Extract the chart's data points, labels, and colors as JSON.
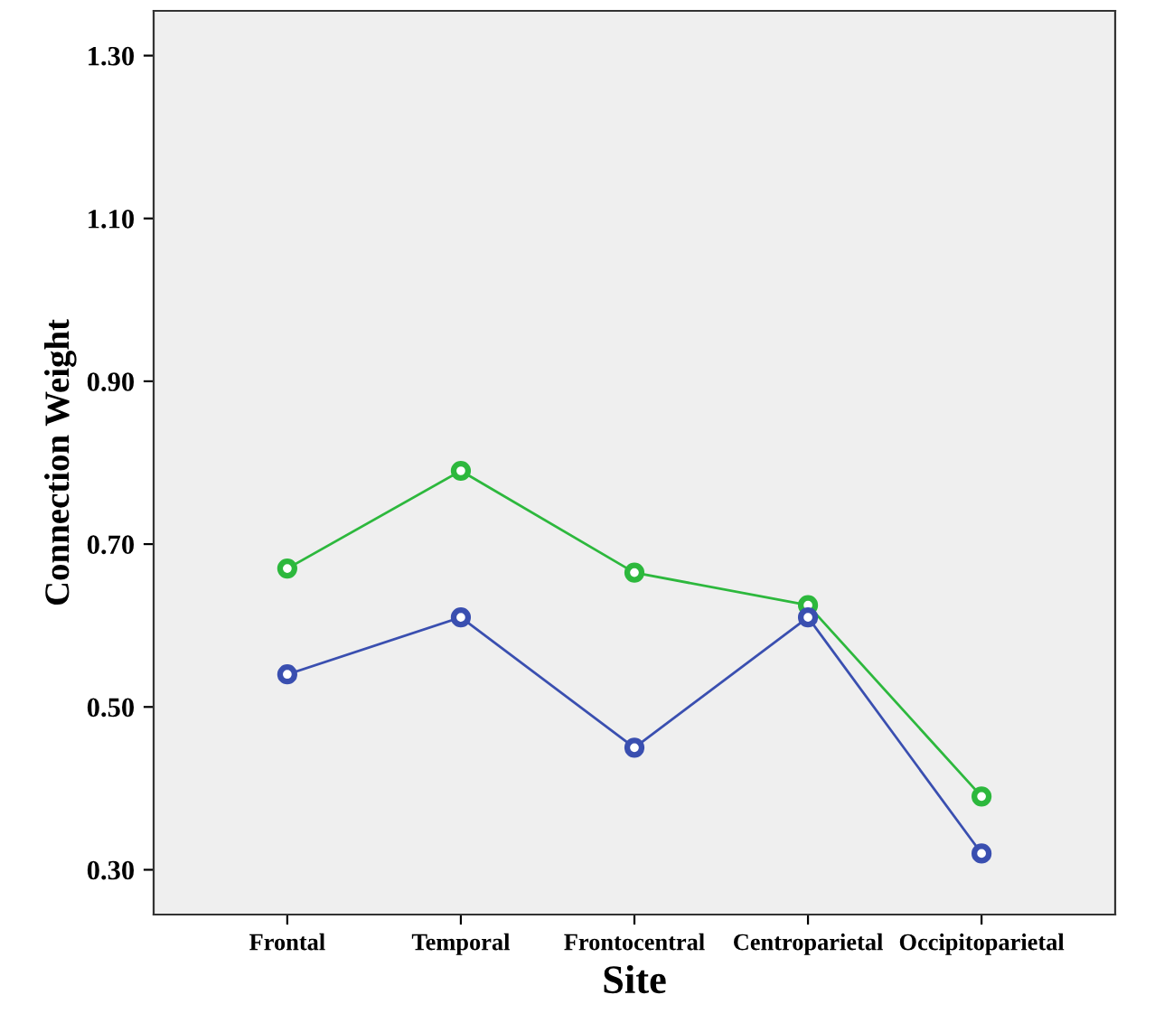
{
  "chart_data": {
    "type": "line",
    "xlabel": "Site",
    "ylabel": "Connection Weight",
    "categories": [
      "Frontal",
      "Temporal",
      "Frontocentral",
      "Centroparietal",
      "Occipitoparietal"
    ],
    "series": [
      {
        "color": "#2db83d",
        "values": [
          0.67,
          0.79,
          0.665,
          0.625,
          0.39
        ]
      },
      {
        "color": "#3a4fb0",
        "values": [
          0.54,
          0.61,
          0.45,
          0.61,
          0.32
        ]
      }
    ],
    "ylim": [
      0.245,
      1.355
    ],
    "yticks": [
      {
        "value": 0.3,
        "label": "0.30"
      },
      {
        "value": 0.5,
        "label": "0.50"
      },
      {
        "value": 0.7,
        "label": "0.70"
      },
      {
        "value": 0.9,
        "label": "0.90"
      },
      {
        "value": 1.1,
        "label": "1.10"
      },
      {
        "value": 1.3,
        "label": "1.30"
      }
    ],
    "grid": false,
    "marker": "circle",
    "line_style": "solid"
  }
}
